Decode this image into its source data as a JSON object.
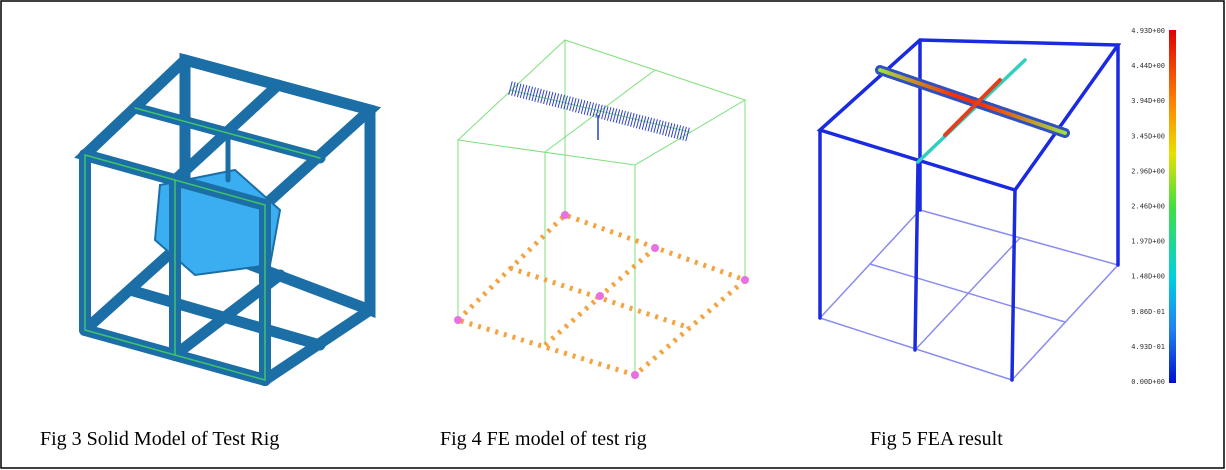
{
  "figures": [
    {
      "caption": "Fig 3 Solid Model of Test Rig"
    },
    {
      "caption": "Fig 4 FE model of test rig"
    },
    {
      "caption": "Fig 5 FEA result"
    }
  ],
  "legend_labels": [
    "4.93D+00",
    "4.44D+00",
    "3.94D+00",
    "3.45D+00",
    "2.96D+00",
    "2.46D+00",
    "1.97D+00",
    "1.48D+00",
    "9.86D-01",
    "4.93D-01",
    "0.00D+00"
  ]
}
